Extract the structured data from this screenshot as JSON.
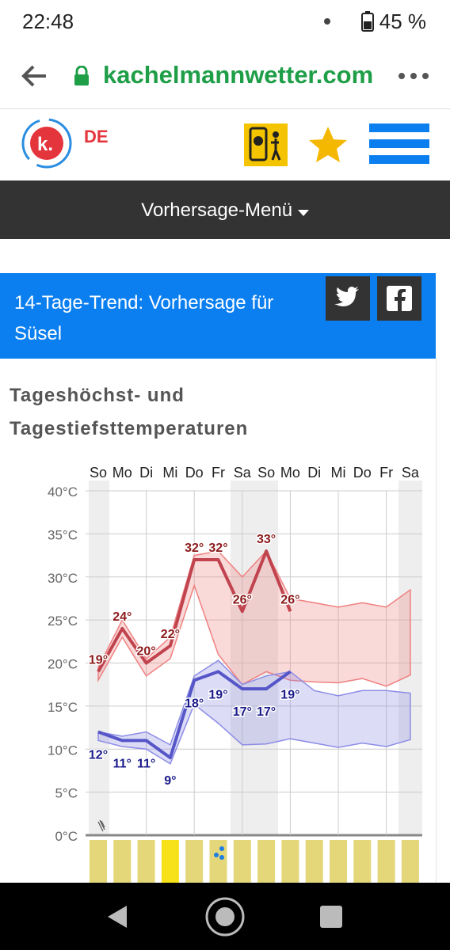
{
  "status": {
    "time": "22:48",
    "battery": "45 %"
  },
  "browser": {
    "url": "kachelmannwetter.com"
  },
  "header": {
    "logo": "k.",
    "lang": "DE"
  },
  "menu": {
    "label": "Vorhersage-Menü"
  },
  "banner": {
    "title": "14-Tage-Trend: Vorhersage für Süsel"
  },
  "section": {
    "heading": "Tageshöchst- und Tagestiefsttemperaturen"
  },
  "chart_data": {
    "type": "line",
    "categories": [
      "So",
      "Mo",
      "Di",
      "Mi",
      "Do",
      "Fr",
      "Sa",
      "So",
      "Mo",
      "Di",
      "Mi",
      "Do",
      "Fr",
      "Sa"
    ],
    "ylim": [
      0,
      40
    ],
    "yticks": [
      {
        "value": 0,
        "label": "0°C"
      },
      {
        "value": 5,
        "label": "5°C"
      },
      {
        "value": 10,
        "label": "10°C"
      },
      {
        "value": 15,
        "label": "15°C"
      },
      {
        "value": 20,
        "label": "20°C"
      },
      {
        "value": 25,
        "label": "25°C"
      },
      {
        "value": 30,
        "label": "30°C"
      },
      {
        "value": 35,
        "label": "35°C"
      },
      {
        "value": 40,
        "label": "40°C"
      }
    ],
    "grid": true,
    "high": {
      "color": "#c0434e",
      "label_color": "#8b1a1a",
      "values": [
        19,
        24,
        20,
        22,
        32,
        32,
        26,
        33,
        26,
        null,
        null,
        null,
        null,
        null
      ],
      "value_labels": [
        "19°",
        "24°",
        "20°",
        "22°",
        "32°",
        "32°",
        "26°",
        "33°",
        "26°",
        null,
        null,
        null,
        null,
        null
      ]
    },
    "low": {
      "color": "#5656c8",
      "label_color": "#1a1a8b",
      "values": [
        12,
        11,
        11,
        9,
        18,
        19,
        17,
        17,
        19,
        null,
        null,
        null,
        null,
        null
      ],
      "value_labels": [
        "12°",
        "11°",
        "11°",
        "9°",
        "18°",
        "19°",
        "17°",
        "17°",
        "19°",
        null,
        null,
        null,
        null,
        null
      ]
    },
    "high_range": {
      "color": "#f08080",
      "upper": [
        19.5,
        25,
        20.5,
        23,
        32.5,
        33,
        30,
        33,
        27.5,
        27,
        26.5,
        27,
        26.5,
        28.5
      ],
      "lower": [
        18,
        23,
        18.5,
        20.5,
        29,
        21,
        17.5,
        19,
        18,
        17.8,
        17.7,
        18.2,
        17.3,
        18.6
      ]
    },
    "low_range": {
      "color": "#8c8ce6",
      "upper": [
        12,
        11.5,
        12,
        10.5,
        18.5,
        20.3,
        17.5,
        18.5,
        19,
        16.8,
        16.2,
        16.8,
        16.8,
        16.5
      ],
      "lower": [
        11,
        10.3,
        10,
        8.3,
        15.2,
        13,
        10.5,
        10.6,
        11.2,
        10.7,
        10.2,
        10.7,
        10.3,
        11.1
      ]
    }
  }
}
